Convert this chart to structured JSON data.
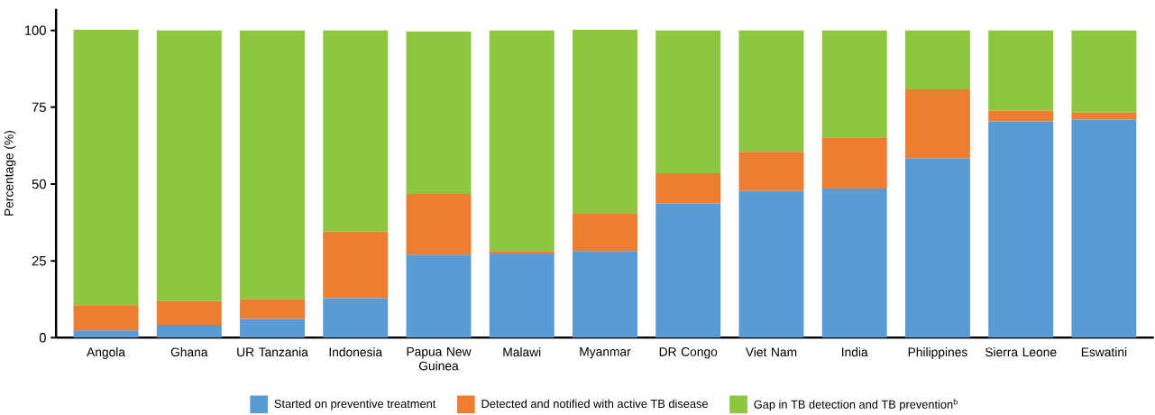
{
  "chart_data": {
    "type": "bar",
    "stacked": true,
    "ylabel": "Percentage (%)",
    "categories": [
      "Angola",
      "Ghana",
      "UR Tanzania",
      "Indonesia",
      "Papua New Guinea",
      "Malawi",
      "Myanmar",
      "DR Congo",
      "Viet Nam",
      "India",
      "Philippines",
      "Sierra Leone",
      "Eswatini"
    ],
    "series": [
      {
        "name": "Started on preventive treatment",
        "color": "#5b9bd5",
        "values": [
          2.4,
          4.2,
          6.1,
          12.9,
          27.0,
          27.4,
          28.2,
          43.7,
          47.7,
          48.5,
          58.4,
          70.4,
          71.0
        ]
      },
      {
        "name": "Detected and notified with active TB disease",
        "color": "#ed7d31",
        "values": [
          8.2,
          7.7,
          6.4,
          21.7,
          19.8,
          0.8,
          12.3,
          9.8,
          12.8,
          16.7,
          22.4,
          3.5,
          2.3
        ]
      },
      {
        "name": "Gap in TB detection and TB prevention$^{b}$",
        "color": "#8dc63f",
        "values": [
          89.6,
          88.1,
          87.5,
          65.4,
          52.8,
          71.8,
          59.7,
          46.5,
          39.5,
          34.8,
          19.2,
          26.1,
          26.7
        ]
      }
    ],
    "ylim": [
      0,
      107
    ],
    "yticks": [
      0,
      25,
      50,
      75,
      100
    ],
    "grid": false,
    "legend": "bottom"
  }
}
